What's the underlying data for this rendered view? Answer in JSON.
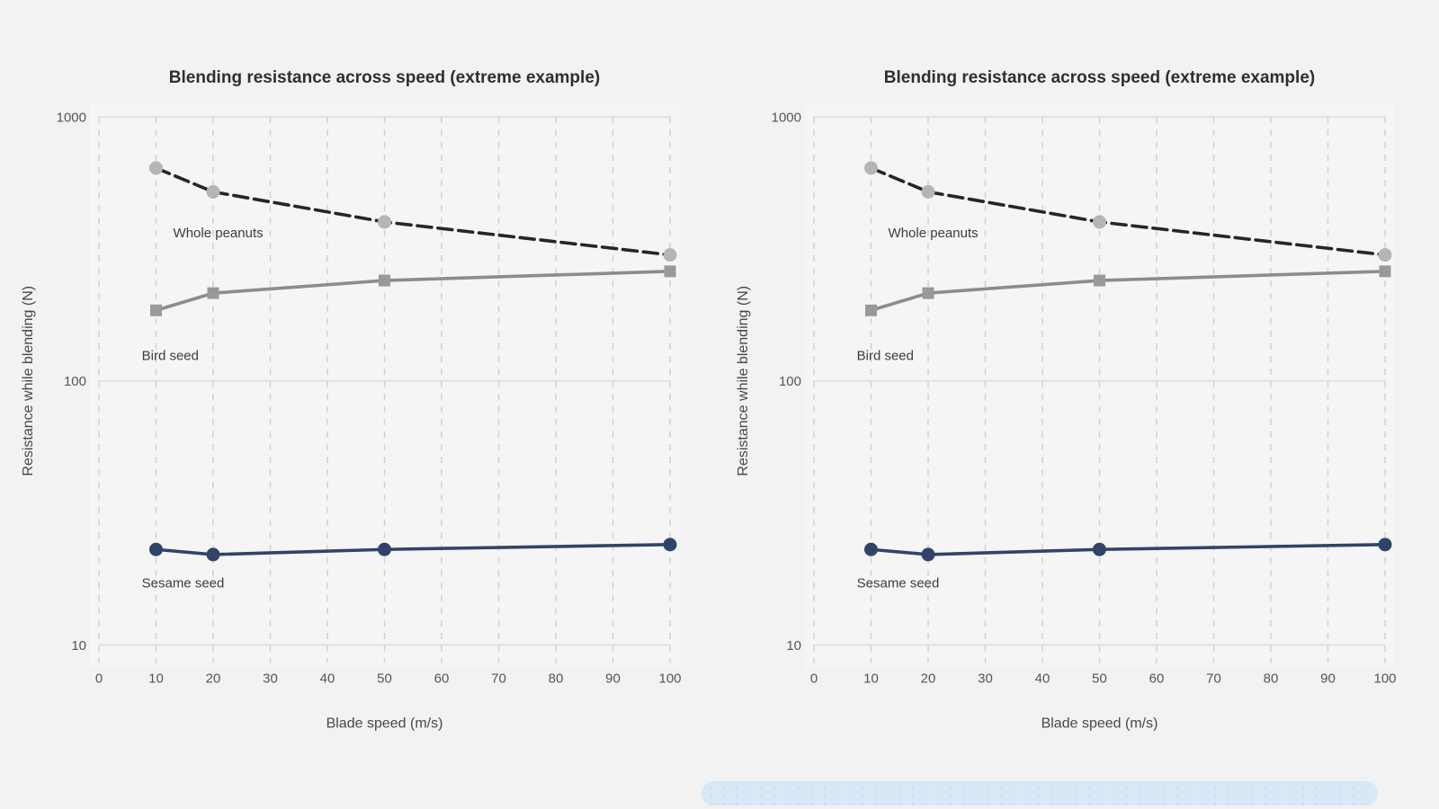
{
  "page": {
    "background_color": "#f2f2f2",
    "panel_background_color": "#f5f5f5"
  },
  "scrollbar": {
    "track_color": "#d9e8f7"
  },
  "chart_data": [
    {
      "type": "line",
      "title": "Blending resistance across speed (extreme example)",
      "xlabel": "Blade speed (m/s)",
      "ylabel": "Resistance while blending (N)",
      "x_scale": "linear",
      "y_scale": "log",
      "xlim": [
        0,
        100
      ],
      "ylim": [
        10,
        1000
      ],
      "x_ticks": [
        0,
        10,
        20,
        30,
        40,
        50,
        60,
        70,
        80,
        90,
        100
      ],
      "y_ticks": [
        10,
        100,
        1000
      ],
      "grid": {
        "vertical": "dashed",
        "horizontal": "solid",
        "color": "#cfcfcf"
      },
      "x": [
        10,
        20,
        50,
        100
      ],
      "series": [
        {
          "name": "Whole peanuts",
          "values": [
            640,
            520,
            400,
            300
          ],
          "line_color": "#262626",
          "line_style": "dashed",
          "marker": "circle",
          "marker_color": "#b5b5b5"
        },
        {
          "name": "Bird seed",
          "values": [
            185,
            215,
            240,
            260
          ],
          "line_color": "#8c8c8c",
          "line_style": "solid",
          "marker": "square",
          "marker_color": "#999999"
        },
        {
          "name": "Sesame seed",
          "values": [
            23,
            22,
            23,
            24
          ],
          "line_color": "#2f4468",
          "line_style": "solid",
          "marker": "circle",
          "marker_color": "#2f4468"
        }
      ],
      "annotations": [
        {
          "text": "Whole peanuts",
          "x": 13,
          "y": 350
        },
        {
          "text": "Bird seed",
          "x": 7.5,
          "y": 120
        },
        {
          "text": "Sesame seed",
          "x": 7.5,
          "y": 16.5
        }
      ]
    },
    {
      "type": "line",
      "title": "Blending resistance across speed (extreme example)",
      "xlabel": "Blade speed (m/s)",
      "ylabel": "Resistance while blending (N)",
      "x_scale": "linear",
      "y_scale": "log",
      "xlim": [
        0,
        100
      ],
      "ylim": [
        10,
        1000
      ],
      "x_ticks": [
        0,
        10,
        20,
        30,
        40,
        50,
        60,
        70,
        80,
        90,
        100
      ],
      "y_ticks": [
        10,
        100,
        1000
      ],
      "grid": {
        "vertical": "dashed",
        "horizontal": "solid",
        "color": "#cfcfcf"
      },
      "x": [
        10,
        20,
        50,
        100
      ],
      "series": [
        {
          "name": "Whole peanuts",
          "values": [
            640,
            520,
            400,
            300
          ],
          "line_color": "#262626",
          "line_style": "dashed",
          "marker": "circle",
          "marker_color": "#b5b5b5"
        },
        {
          "name": "Bird seed",
          "values": [
            185,
            215,
            240,
            260
          ],
          "line_color": "#8c8c8c",
          "line_style": "solid",
          "marker": "square",
          "marker_color": "#999999"
        },
        {
          "name": "Sesame seed",
          "values": [
            23,
            22,
            23,
            24
          ],
          "line_color": "#2f4468",
          "line_style": "solid",
          "marker": "circle",
          "marker_color": "#2f4468"
        }
      ],
      "annotations": [
        {
          "text": "Whole peanuts",
          "x": 13,
          "y": 350
        },
        {
          "text": "Bird seed",
          "x": 7.5,
          "y": 120
        },
        {
          "text": "Sesame seed",
          "x": 7.5,
          "y": 16.5
        }
      ]
    }
  ]
}
